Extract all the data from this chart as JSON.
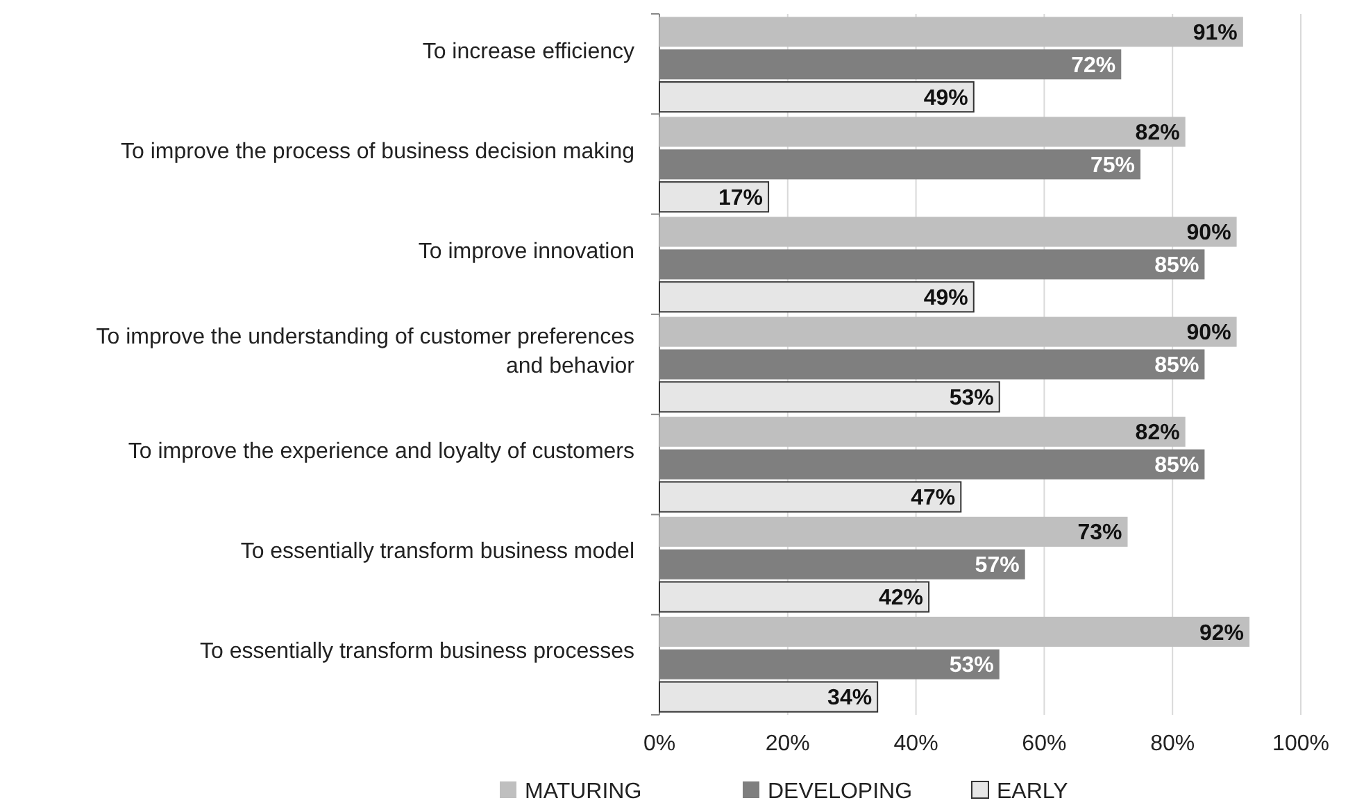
{
  "chart_data": {
    "type": "bar",
    "orientation": "horizontal",
    "categories": [
      "To increase efficiency",
      "To improve the process of business decision making",
      "To improve innovation",
      "To improve the understanding of customer preferences and behavior",
      "To improve the experience and loyalty of customers",
      "To essentially transform business model",
      "To essentially transform business processes"
    ],
    "series": [
      {
        "name": "MATURING",
        "color": "#bfbfbf",
        "values": [
          91,
          82,
          90,
          90,
          82,
          73,
          92
        ],
        "value_labels": [
          "91%",
          "82%",
          "90%",
          "90%",
          "82%",
          "73%",
          "92%"
        ]
      },
      {
        "name": "DEVELOPING",
        "color": "#7f7f7f",
        "values": [
          72,
          75,
          85,
          85,
          85,
          57,
          53
        ],
        "value_labels": [
          "72%",
          "75%",
          "85%",
          "85%",
          "85%",
          "57%",
          "53%"
        ]
      },
      {
        "name": "EARLY",
        "color": "#e6e6e6",
        "values": [
          49,
          17,
          49,
          53,
          47,
          42,
          34
        ],
        "value_labels": [
          "49%",
          "17%",
          "49%",
          "53%",
          "47%",
          "42%",
          "34%"
        ]
      }
    ],
    "xlim": [
      0,
      100
    ],
    "xticks": [
      {
        "value": 0,
        "label": "0%"
      },
      {
        "value": 20,
        "label": "20%"
      },
      {
        "value": 40,
        "label": "40%"
      },
      {
        "value": 60,
        "label": "60%"
      },
      {
        "value": 80,
        "label": "80%"
      },
      {
        "value": 100,
        "label": "100%"
      }
    ],
    "grid": "x",
    "legend": "bottom"
  }
}
